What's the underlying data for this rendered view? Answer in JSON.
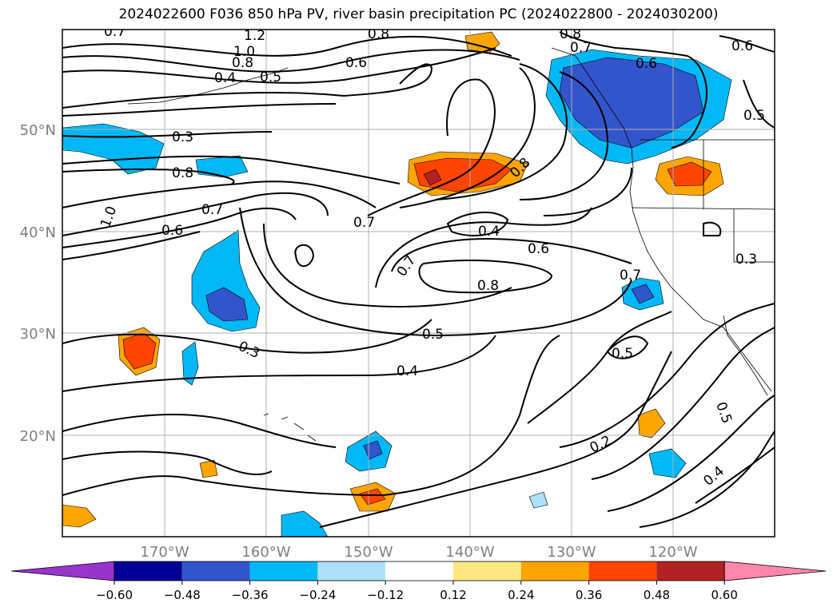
{
  "title": "2024022600 F036 850 hPa PV, river basin precipitation PC (2024022800 - 2024030200)",
  "map": {
    "lon_labels": [
      "170°W",
      "160°W",
      "150°W",
      "140°W",
      "130°W",
      "120°W"
    ],
    "lat_labels": [
      "50°N",
      "40°N",
      "30°N",
      "20°N"
    ],
    "contour_labels": [
      "0.7",
      "1.2",
      "0.8",
      "1.0",
      "0.8",
      "0.6",
      "0.4",
      "0.5",
      "0.8",
      "0.7",
      "0.6",
      "0.6",
      "0.3",
      "0.5",
      "0.8",
      "1.0",
      "0.7",
      "0.6",
      "0.7",
      "0.8",
      "0.4",
      "0.6",
      "0.7",
      "0.8",
      "0.7",
      "0.3",
      "0.5",
      "0.3",
      "0.4",
      "0.5",
      "0.2",
      "0.5",
      "0.4"
    ]
  },
  "colorbar": {
    "ticks": [
      "−0.60",
      "−0.48",
      "−0.36",
      "−0.24",
      "−0.12",
      "0.12",
      "0.24",
      "0.36",
      "0.48",
      "0.60"
    ],
    "colors": [
      "#9933cc",
      "#000099",
      "#3355cc",
      "#00b8f5",
      "#aee0fa",
      "#ffffff",
      "#ffe680",
      "#ffa500",
      "#ff4500",
      "#b22222",
      "#ff88aa"
    ]
  }
}
